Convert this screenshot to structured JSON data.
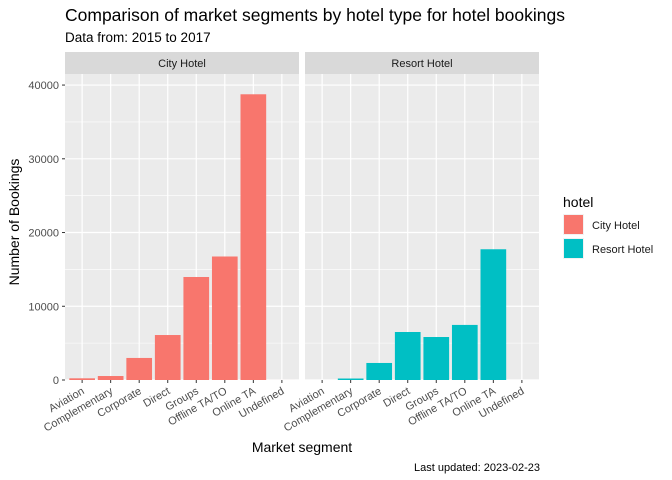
{
  "chart_data": {
    "type": "bar",
    "title": "Comparison of market segments by hotel type for hotel bookings",
    "subtitle": "Data from: 2015 to 2017",
    "xlabel": "Market segment",
    "ylabel": "Number of Bookings",
    "caption": "Last updated: 2023-02-23",
    "categories": [
      "Aviation",
      "Complementary",
      "Corporate",
      "Direct",
      "Groups",
      "Offline TA/TO",
      "Online TA",
      "Undefined"
    ],
    "ylim": [
      0,
      41500
    ],
    "yticks": [
      0,
      10000,
      20000,
      30000,
      40000
    ],
    "ytick_labels": [
      "0",
      "10000",
      "20000",
      "30000",
      "40000"
    ],
    "legend_title": "hotel",
    "legend_position": "right",
    "grid": true,
    "facets": [
      {
        "name": "City Hotel",
        "color": "#F8766D",
        "values": [
          230,
          540,
          2990,
          6100,
          13970,
          16750,
          38750,
          2
        ]
      },
      {
        "name": "Resort Hotel",
        "color": "#00BFC4",
        "values": [
          0,
          200,
          2310,
          6510,
          5830,
          7470,
          17730,
          0
        ]
      }
    ]
  }
}
